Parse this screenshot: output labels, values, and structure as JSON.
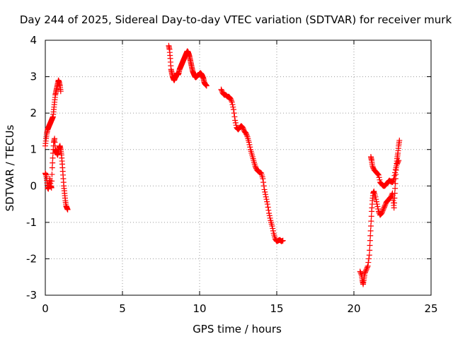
{
  "chart_data": {
    "type": "scatter",
    "title": "Day 244 of 2025, Sidereal Day-to-day VTEC variation (SDTVAR) for receiver murk",
    "xlabel": "GPS time / hours",
    "ylabel": "SDTVAR / TECUs",
    "xlim": [
      0,
      25
    ],
    "ylim": [
      -3,
      4
    ],
    "xticks": [
      0,
      5,
      10,
      15,
      20,
      25
    ],
    "yticks": [
      -3,
      -2,
      -1,
      0,
      1,
      2,
      3,
      4
    ],
    "xtick_labels": [
      "0",
      "5",
      "10",
      "15",
      "20",
      "25"
    ],
    "ytick_labels": [
      "-3",
      "-2",
      "-1",
      "0",
      "1",
      "2",
      "3",
      "4"
    ],
    "grid": true,
    "legend": "none",
    "marker": "plus",
    "series": [
      {
        "name": "SDTVAR",
        "color": "#ff0000",
        "segments": [
          [
            [
              0.0,
              1.1
            ],
            [
              0.05,
              1.3
            ],
            [
              0.1,
              1.45
            ],
            [
              0.15,
              1.55
            ],
            [
              0.2,
              1.6
            ],
            [
              0.25,
              1.65
            ],
            [
              0.3,
              1.7
            ],
            [
              0.35,
              1.75
            ],
            [
              0.4,
              1.8
            ],
            [
              0.45,
              1.85
            ],
            [
              0.5,
              1.9
            ],
            [
              0.55,
              2.1
            ],
            [
              0.6,
              2.3
            ],
            [
              0.65,
              2.5
            ],
            [
              0.7,
              2.6
            ],
            [
              0.75,
              2.7
            ],
            [
              0.8,
              2.8
            ],
            [
              0.85,
              2.9
            ],
            [
              0.9,
              2.85
            ],
            [
              0.95,
              2.75
            ],
            [
              1.0,
              2.6
            ]
          ],
          [
            [
              0.0,
              0.35
            ],
            [
              0.05,
              0.3
            ],
            [
              0.1,
              0.15
            ],
            [
              0.15,
              -0.05
            ],
            [
              0.2,
              -0.08
            ],
            [
              0.25,
              0.05
            ],
            [
              0.3,
              0.2
            ],
            [
              0.35,
              0.0
            ],
            [
              0.4,
              -0.05
            ],
            [
              0.45,
              0.5
            ],
            [
              0.5,
              0.9
            ],
            [
              0.55,
              1.2
            ],
            [
              0.6,
              1.3
            ],
            [
              0.65,
              1.0
            ],
            [
              0.7,
              0.95
            ],
            [
              0.75,
              0.9
            ],
            [
              0.8,
              0.85
            ],
            [
              0.85,
              0.95
            ],
            [
              0.9,
              1.05
            ],
            [
              0.95,
              1.1
            ],
            [
              1.0,
              1.0
            ],
            [
              1.05,
              0.85
            ],
            [
              1.1,
              0.6
            ],
            [
              1.15,
              0.3
            ],
            [
              1.2,
              0.0
            ],
            [
              1.25,
              -0.2
            ],
            [
              1.3,
              -0.4
            ],
            [
              1.35,
              -0.55
            ],
            [
              1.4,
              -0.6
            ],
            [
              1.45,
              -0.65
            ]
          ],
          [
            [
              8.0,
              3.85
            ],
            [
              8.05,
              3.75
            ],
            [
              8.1,
              3.5
            ],
            [
              8.15,
              3.2
            ],
            [
              8.2,
              3.1
            ],
            [
              8.25,
              3.0
            ],
            [
              8.3,
              2.95
            ],
            [
              8.35,
              2.9
            ],
            [
              8.4,
              2.95
            ],
            [
              8.45,
              3.0
            ],
            [
              8.5,
              3.05
            ],
            [
              8.55,
              3.1
            ],
            [
              8.6,
              3.05
            ],
            [
              8.65,
              3.1
            ],
            [
              8.7,
              3.2
            ],
            [
              8.75,
              3.25
            ],
            [
              8.8,
              3.3
            ],
            [
              8.85,
              3.35
            ],
            [
              8.9,
              3.4
            ],
            [
              8.95,
              3.45
            ],
            [
              9.0,
              3.5
            ],
            [
              9.05,
              3.55
            ],
            [
              9.1,
              3.6
            ],
            [
              9.15,
              3.65
            ],
            [
              9.2,
              3.7
            ],
            [
              9.25,
              3.68
            ],
            [
              9.3,
              3.62
            ],
            [
              9.35,
              3.55
            ],
            [
              9.4,
              3.45
            ],
            [
              9.45,
              3.35
            ],
            [
              9.5,
              3.25
            ],
            [
              9.55,
              3.15
            ],
            [
              9.6,
              3.1
            ],
            [
              9.65,
              3.05
            ],
            [
              9.7,
              3.0
            ],
            [
              9.75,
              2.98
            ],
            [
              9.8,
              3.0
            ],
            [
              9.85,
              3.02
            ],
            [
              9.9,
              3.05
            ],
            [
              9.95,
              3.05
            ],
            [
              10.0,
              3.08
            ],
            [
              10.05,
              3.1
            ],
            [
              10.1,
              3.08
            ],
            [
              10.15,
              3.05
            ],
            [
              10.2,
              3.0
            ],
            [
              10.25,
              2.95
            ],
            [
              10.3,
              2.85
            ],
            [
              10.35,
              2.8
            ],
            [
              10.4,
              2.78
            ],
            [
              10.45,
              2.75
            ]
          ],
          [
            [
              11.4,
              2.65
            ],
            [
              11.5,
              2.55
            ],
            [
              11.6,
              2.5
            ],
            [
              11.7,
              2.5
            ],
            [
              11.8,
              2.45
            ],
            [
              11.9,
              2.45
            ],
            [
              12.0,
              2.4
            ],
            [
              12.1,
              2.3
            ],
            [
              12.2,
              2.1
            ],
            [
              12.3,
              1.8
            ],
            [
              12.4,
              1.6
            ],
            [
              12.5,
              1.55
            ],
            [
              12.6,
              1.6
            ],
            [
              12.7,
              1.65
            ],
            [
              12.8,
              1.6
            ],
            [
              12.9,
              1.5
            ],
            [
              13.0,
              1.45
            ],
            [
              13.1,
              1.35
            ],
            [
              13.2,
              1.2
            ],
            [
              13.3,
              1.0
            ],
            [
              13.4,
              0.85
            ],
            [
              13.5,
              0.7
            ],
            [
              13.6,
              0.55
            ],
            [
              13.7,
              0.45
            ],
            [
              13.8,
              0.4
            ],
            [
              13.9,
              0.38
            ],
            [
              14.0,
              0.35
            ],
            [
              14.1,
              0.2
            ],
            [
              14.2,
              -0.1
            ],
            [
              14.3,
              -0.3
            ],
            [
              14.4,
              -0.5
            ],
            [
              14.5,
              -0.75
            ],
            [
              14.6,
              -0.95
            ],
            [
              14.7,
              -1.1
            ],
            [
              14.8,
              -1.3
            ],
            [
              14.9,
              -1.45
            ],
            [
              15.0,
              -1.52
            ],
            [
              15.1,
              -1.5
            ],
            [
              15.2,
              -1.48
            ],
            [
              15.3,
              -1.52
            ],
            [
              15.4,
              -1.5
            ]
          ],
          [
            [
              20.4,
              -2.35
            ],
            [
              20.5,
              -2.45
            ],
            [
              20.55,
              -2.6
            ],
            [
              20.6,
              -2.7
            ],
            [
              20.65,
              -2.55
            ],
            [
              20.7,
              -2.4
            ],
            [
              20.8,
              -2.3
            ],
            [
              20.9,
              -2.2
            ],
            [
              21.0,
              -1.9
            ],
            [
              21.05,
              -1.5
            ],
            [
              21.1,
              -1.1
            ],
            [
              21.15,
              -0.7
            ],
            [
              21.2,
              -0.4
            ],
            [
              21.25,
              -0.2
            ],
            [
              21.3,
              -0.15
            ],
            [
              21.4,
              -0.3
            ],
            [
              21.5,
              -0.5
            ],
            [
              21.6,
              -0.7
            ],
            [
              21.7,
              -0.8
            ],
            [
              21.8,
              -0.75
            ],
            [
              21.9,
              -0.65
            ],
            [
              22.0,
              -0.55
            ],
            [
              22.1,
              -0.45
            ],
            [
              22.2,
              -0.4
            ],
            [
              22.3,
              -0.35
            ],
            [
              22.4,
              -0.3
            ],
            [
              22.5,
              -0.2
            ],
            [
              22.55,
              -0.4
            ],
            [
              22.6,
              -0.6
            ],
            [
              22.65,
              -0.2
            ],
            [
              22.7,
              0.2
            ],
            [
              22.75,
              0.55
            ],
            [
              22.8,
              0.75
            ],
            [
              22.85,
              0.9
            ],
            [
              22.9,
              1.1
            ],
            [
              22.95,
              1.25
            ]
          ],
          [
            [
              21.1,
              0.8
            ],
            [
              21.15,
              0.7
            ],
            [
              21.2,
              0.55
            ],
            [
              21.3,
              0.45
            ],
            [
              21.4,
              0.4
            ],
            [
              21.5,
              0.35
            ],
            [
              21.6,
              0.3
            ],
            [
              21.7,
              0.1
            ],
            [
              21.8,
              0.05
            ],
            [
              21.9,
              0.0
            ],
            [
              22.0,
              0.0
            ],
            [
              22.1,
              0.05
            ],
            [
              22.2,
              0.1
            ],
            [
              22.3,
              0.15
            ],
            [
              22.4,
              0.12
            ],
            [
              22.5,
              0.1
            ],
            [
              22.6,
              0.2
            ],
            [
              22.7,
              0.45
            ],
            [
              22.8,
              0.6
            ],
            [
              22.9,
              0.7
            ]
          ]
        ]
      }
    ]
  }
}
